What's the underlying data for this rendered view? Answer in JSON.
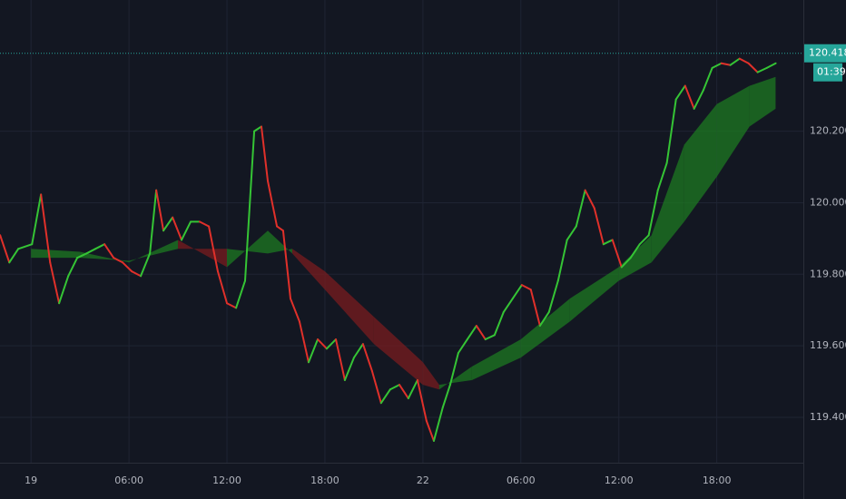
{
  "chart_data": {
    "type": "line",
    "x": [
      -1.89,
      -1.33,
      -0.78,
      0.06,
      0.61,
      1.17,
      1.72,
      2.28,
      2.83,
      3.39,
      3.94,
      4.5,
      5.06,
      5.61,
      6.17,
      6.72,
      7.28,
      7.67,
      8.11,
      8.67,
      9.22,
      9.78,
      10.33,
      10.89,
      11.44,
      12,
      12.56,
      13.11,
      13.67,
      14.11,
      14.5,
      15.06,
      15.44,
      15.89,
      16.44,
      17,
      17.56,
      18.11,
      18.67,
      19.22,
      19.78,
      20.33,
      20.89,
      21.44,
      22,
      22.56,
      23.11,
      23.67,
      24.22,
      24.67,
      25.22,
      25.67,
      26.17,
      26.72,
      27.28,
      27.83,
      28.39,
      28.94,
      29.5,
      30.06,
      30.61,
      31.17,
      31.72,
      32.28,
      32.83,
      33.39,
      33.94,
      34.5,
      35.06,
      35.61,
      36.17,
      36.72,
      37.28,
      37.83,
      38.39,
      38.94,
      39.5,
      40.06,
      40.61,
      41.17,
      41.72,
      42.28,
      42.83,
      43.39,
      43.94,
      44.5,
      45.06,
      45.61
    ],
    "values": [
      119.909,
      119.833,
      119.871,
      119.884,
      120.023,
      119.833,
      119.719,
      119.795,
      119.846,
      119.858,
      119.871,
      119.884,
      119.846,
      119.833,
      119.808,
      119.795,
      119.858,
      120.035,
      119.922,
      119.959,
      119.896,
      119.947,
      119.947,
      119.934,
      119.808,
      119.719,
      119.706,
      119.782,
      120.2,
      120.213,
      120.061,
      119.934,
      119.922,
      119.732,
      119.668,
      119.554,
      119.618,
      119.592,
      119.618,
      119.504,
      119.567,
      119.605,
      119.529,
      119.44,
      119.478,
      119.491,
      119.453,
      119.504,
      119.39,
      119.334,
      119.428,
      119.491,
      119.58,
      119.618,
      119.656,
      119.618,
      119.63,
      119.694,
      119.732,
      119.77,
      119.757,
      119.656,
      119.694,
      119.782,
      119.896,
      119.934,
      120.035,
      119.985,
      119.884,
      119.896,
      119.82,
      119.846,
      119.884,
      119.909,
      120.035,
      120.111,
      120.289,
      120.327,
      120.263,
      120.314,
      120.377,
      120.39,
      120.385,
      120.403,
      120.39,
      120.365,
      120.377,
      120.39
    ],
    "up_color": "#35c435",
    "down_color": "#e0302a",
    "band": {
      "x": [
        0,
        3,
        6,
        9,
        12,
        14.5,
        16,
        18,
        21,
        24,
        25,
        27,
        30,
        33,
        36,
        38,
        40,
        42,
        44,
        45.6
      ],
      "fast": [
        119.871,
        119.863,
        119.833,
        119.896,
        119.82,
        119.922,
        119.858,
        119.757,
        119.605,
        119.491,
        119.478,
        119.542,
        119.618,
        119.732,
        119.82,
        119.909,
        120.162,
        120.276,
        120.327,
        120.352
      ],
      "slow": [
        119.846,
        119.846,
        119.838,
        119.871,
        119.871,
        119.858,
        119.871,
        119.808,
        119.681,
        119.554,
        119.491,
        119.504,
        119.567,
        119.668,
        119.782,
        119.833,
        119.947,
        120.073,
        120.213,
        120.263
      ],
      "up_color": "#1e7a22",
      "down_color": "#7a1c1f"
    },
    "last_price": 120.418,
    "last_price_color": "#26a69a",
    "countdown": "01:39",
    "xlim": [
      -1.9,
      47.3
    ],
    "ylim": [
      119.273,
      120.567
    ],
    "xticks": [
      {
        "value": 0,
        "label": "19"
      },
      {
        "value": 6,
        "label": "06:00"
      },
      {
        "value": 12,
        "label": "12:00"
      },
      {
        "value": 18,
        "label": "18:00"
      },
      {
        "value": 24,
        "label": "22"
      },
      {
        "value": 30,
        "label": "06:00"
      },
      {
        "value": 36,
        "label": "12:00"
      },
      {
        "value": 42,
        "label": "18:00"
      }
    ],
    "yticks": [
      {
        "value": 119.4,
        "label": "119.400"
      },
      {
        "value": 119.6,
        "label": "119.600"
      },
      {
        "value": 119.8,
        "label": "119.800"
      },
      {
        "value": 120,
        "label": "120.000"
      },
      {
        "value": 120.2,
        "label": "120.200"
      }
    ],
    "grid": true
  }
}
